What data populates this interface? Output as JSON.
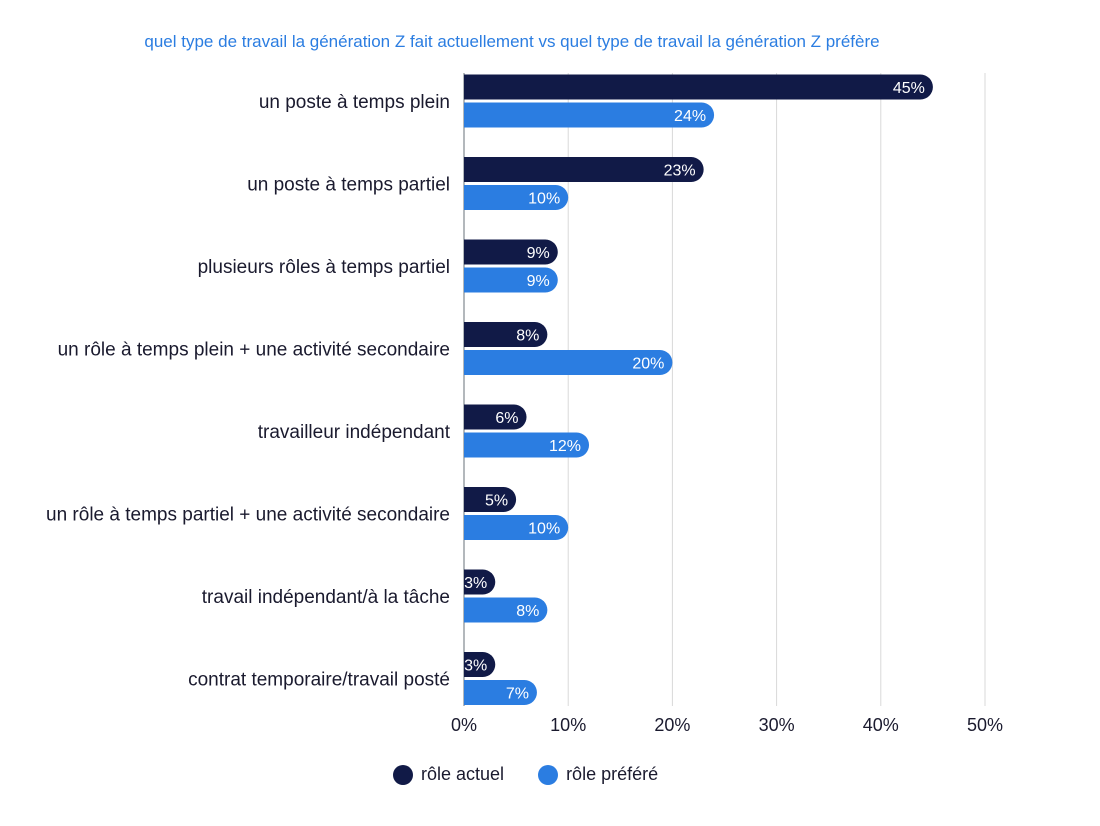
{
  "chart_data": {
    "type": "bar",
    "orientation": "horizontal",
    "title": "quel type de travail la génération Z fait actuellement vs quel type de travail la génération Z préfère",
    "categories": [
      "un poste à temps plein",
      "un poste à temps partiel",
      "plusieurs rôles à temps partiel",
      "un rôle à temps plein + une activité secondaire",
      "travailleur indépendant",
      "un rôle à temps partiel + une activité secondaire",
      "travail indépendant/à la tâche",
      "contrat temporaire/travail posté"
    ],
    "series": [
      {
        "name": "rôle actuel",
        "color": "#111a47",
        "values": [
          45,
          23,
          9,
          8,
          6,
          5,
          3,
          3
        ]
      },
      {
        "name": "rôle préféré",
        "color": "#2b7de1",
        "values": [
          24,
          10,
          9,
          20,
          12,
          10,
          8,
          7
        ]
      }
    ],
    "value_suffix": "%",
    "xlim": [
      0,
      50
    ],
    "xticks": [
      "0%",
      "10%",
      "20%",
      "30%",
      "40%",
      "50%"
    ],
    "xtick_values": [
      0,
      10,
      20,
      30,
      40,
      50
    ],
    "grid": "vertical",
    "legend_position": "bottom"
  }
}
